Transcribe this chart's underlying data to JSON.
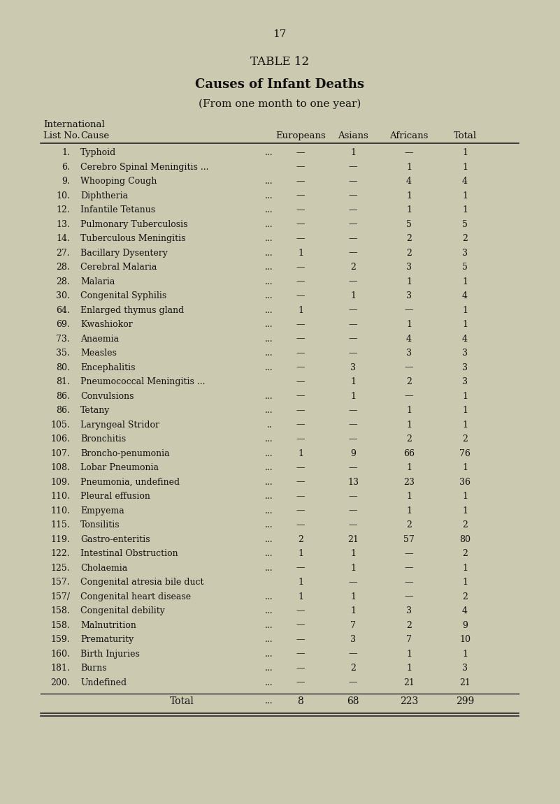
{
  "page_number": "17",
  "table_title": "TABLE 12",
  "subtitle_bold": "Causes of Infant Deaths",
  "subtitle_normal": "(From one month to one year)",
  "col_headers": [
    "Europeans",
    "Asians",
    "Africans",
    "Total"
  ],
  "header_left1": "International",
  "header_left2": "List No.",
  "header_left3": "Cause",
  "rows": [
    {
      "no": "1.",
      "cause": "Typhoid",
      "dots": "...",
      "eur": "—",
      "asi": "1",
      "afr": "—",
      "tot": "1"
    },
    {
      "no": "6.",
      "cause": "Cerebro Spinal Meningitis ...",
      "dots": "",
      "eur": "—",
      "asi": "—",
      "afr": "1",
      "tot": "1"
    },
    {
      "no": "9.",
      "cause": "Whooping Cough",
      "dots": "...",
      "eur": "—",
      "asi": "—",
      "afr": "4",
      "tot": "4"
    },
    {
      "no": "10.",
      "cause": "Diphtheria",
      "dots": "...",
      "eur": "—",
      "asi": "—",
      "afr": "1",
      "tot": "1"
    },
    {
      "no": "12.",
      "cause": "Infantile Tetanus",
      "dots": "...",
      "eur": "—",
      "asi": "—",
      "afr": "1",
      "tot": "1"
    },
    {
      "no": "13.",
      "cause": "Pulmonary Tuberculosis",
      "dots": "...",
      "eur": "—",
      "asi": "—",
      "afr": "5",
      "tot": "5"
    },
    {
      "no": "14.",
      "cause": "Tuberculous Meningitis",
      "dots": "...",
      "eur": "—",
      "asi": "—",
      "afr": "2",
      "tot": "2"
    },
    {
      "no": "27.",
      "cause": "Bacillary Dysentery",
      "dots": "...",
      "eur": "1",
      "asi": "—",
      "afr": "2",
      "tot": "3"
    },
    {
      "no": "28.",
      "cause": "Cerebral Malaria",
      "dots": "...",
      "eur": "—",
      "asi": "2",
      "afr": "3",
      "tot": "5"
    },
    {
      "no": "28.",
      "cause": "Malaria",
      "dots": "...",
      "eur": "—",
      "asi": "—",
      "afr": "1",
      "tot": "1"
    },
    {
      "no": "30.",
      "cause": "Congenital Syphilis",
      "dots": "...",
      "eur": "—",
      "asi": "1",
      "afr": "3",
      "tot": "4"
    },
    {
      "no": "64.",
      "cause": "Enlarged thymus gland",
      "dots": "...",
      "eur": "1",
      "asi": "—",
      "afr": "—",
      "tot": "1"
    },
    {
      "no": "69.",
      "cause": "Kwashiokor",
      "dots": "...",
      "eur": "—",
      "asi": "—",
      "afr": "1",
      "tot": "1"
    },
    {
      "no": "73.",
      "cause": "Anaemia",
      "dots": "...",
      "eur": "—",
      "asi": "—",
      "afr": "4",
      "tot": "4"
    },
    {
      "no": "35.",
      "cause": "Measles",
      "dots": "...",
      "eur": "—",
      "asi": "—",
      "afr": "3",
      "tot": "3"
    },
    {
      "no": "80.",
      "cause": "Encephalitis",
      "dots": "...",
      "eur": "—",
      "asi": "3",
      "afr": "—",
      "tot": "3"
    },
    {
      "no": "81.",
      "cause": "Pneumococcal Meningitis ...",
      "dots": "",
      "eur": "—",
      "asi": "1",
      "afr": "2",
      "tot": "3"
    },
    {
      "no": "86.",
      "cause": "Convulsions",
      "dots": "...",
      "eur": "—",
      "asi": "1",
      "afr": "—",
      "tot": "1"
    },
    {
      "no": "86.",
      "cause": "Tetany",
      "dots": "...",
      "eur": "—",
      "asi": "—",
      "afr": "1",
      "tot": "1"
    },
    {
      "no": "105.",
      "cause": "Laryngeal Stridor",
      "dots": "..",
      "eur": "—",
      "asi": "—",
      "afr": "1",
      "tot": "1"
    },
    {
      "no": "106.",
      "cause": "Bronchitis",
      "dots": "...",
      "eur": "—",
      "asi": "—",
      "afr": "2",
      "tot": "2"
    },
    {
      "no": "107.",
      "cause": "Broncho-penumonia",
      "dots": "...",
      "eur": "1",
      "asi": "9",
      "afr": "66",
      "tot": "76"
    },
    {
      "no": "108.",
      "cause": "Lobar Pneumonia",
      "dots": "...",
      "eur": "—",
      "asi": "—",
      "afr": "1",
      "tot": "1"
    },
    {
      "no": "109.",
      "cause": "Pneumonia, undefined",
      "dots": "...",
      "eur": "—",
      "asi": "13",
      "afr": "23",
      "tot": "36"
    },
    {
      "no": "110.",
      "cause": "Pleural effusion",
      "dots": "...",
      "eur": "—",
      "asi": "—",
      "afr": "1",
      "tot": "1"
    },
    {
      "no": "110.",
      "cause": "Empyema",
      "dots": "...",
      "eur": "—",
      "asi": "—",
      "afr": "1",
      "tot": "1"
    },
    {
      "no": "115.",
      "cause": "Tonsilitis",
      "dots": "...",
      "eur": "—",
      "asi": "—",
      "afr": "2",
      "tot": "2"
    },
    {
      "no": "119.",
      "cause": "Gastro-enteritis",
      "dots": "...",
      "eur": "2",
      "asi": "21",
      "afr": "57",
      "tot": "80"
    },
    {
      "no": "122.",
      "cause": "Intestinal Obstruction",
      "dots": "...",
      "eur": "1",
      "asi": "1",
      "afr": "—",
      "tot": "2"
    },
    {
      "no": "125.",
      "cause": "Cholaemia",
      "dots": "...",
      "eur": "—",
      "asi": "1",
      "afr": "—",
      "tot": "1"
    },
    {
      "no": "157.",
      "cause": "Congenital atresia bile duct",
      "dots": "",
      "eur": "1",
      "asi": "—",
      "afr": "—",
      "tot": "1"
    },
    {
      "no": "157/",
      "cause": "Congenital heart disease",
      "dots": "...",
      "eur": "1",
      "asi": "1",
      "afr": "—",
      "tot": "2"
    },
    {
      "no": "158.",
      "cause": "Congenital debility",
      "dots": "...",
      "eur": "—",
      "asi": "1",
      "afr": "3",
      "tot": "4"
    },
    {
      "no": "158.",
      "cause": "Malnutrition",
      "dots": "...",
      "eur": "—",
      "asi": "7",
      "afr": "2",
      "tot": "9"
    },
    {
      "no": "159.",
      "cause": "Prematurity",
      "dots": "...",
      "eur": "—",
      "asi": "3",
      "afr": "7",
      "tot": "10"
    },
    {
      "no": "160.",
      "cause": "Birth Injuries",
      "dots": "...",
      "eur": "—",
      "asi": "—",
      "afr": "1",
      "tot": "1"
    },
    {
      "no": "181.",
      "cause": "Burns",
      "dots": "...",
      "eur": "—",
      "asi": "2",
      "afr": "1",
      "tot": "3"
    },
    {
      "no": "200.",
      "cause": "Undefined",
      "dots": "...",
      "eur": "—",
      "asi": "—",
      "afr": "21",
      "tot": "21"
    }
  ],
  "total_row": {
    "label": "Total",
    "dots": "...",
    "eur": "8",
    "asi": "68",
    "afr": "223",
    "tot": "299"
  },
  "bg_color": "#cbc9b0",
  "text_color": "#111111",
  "line_color": "#222222",
  "font_family": "DejaVu Serif"
}
